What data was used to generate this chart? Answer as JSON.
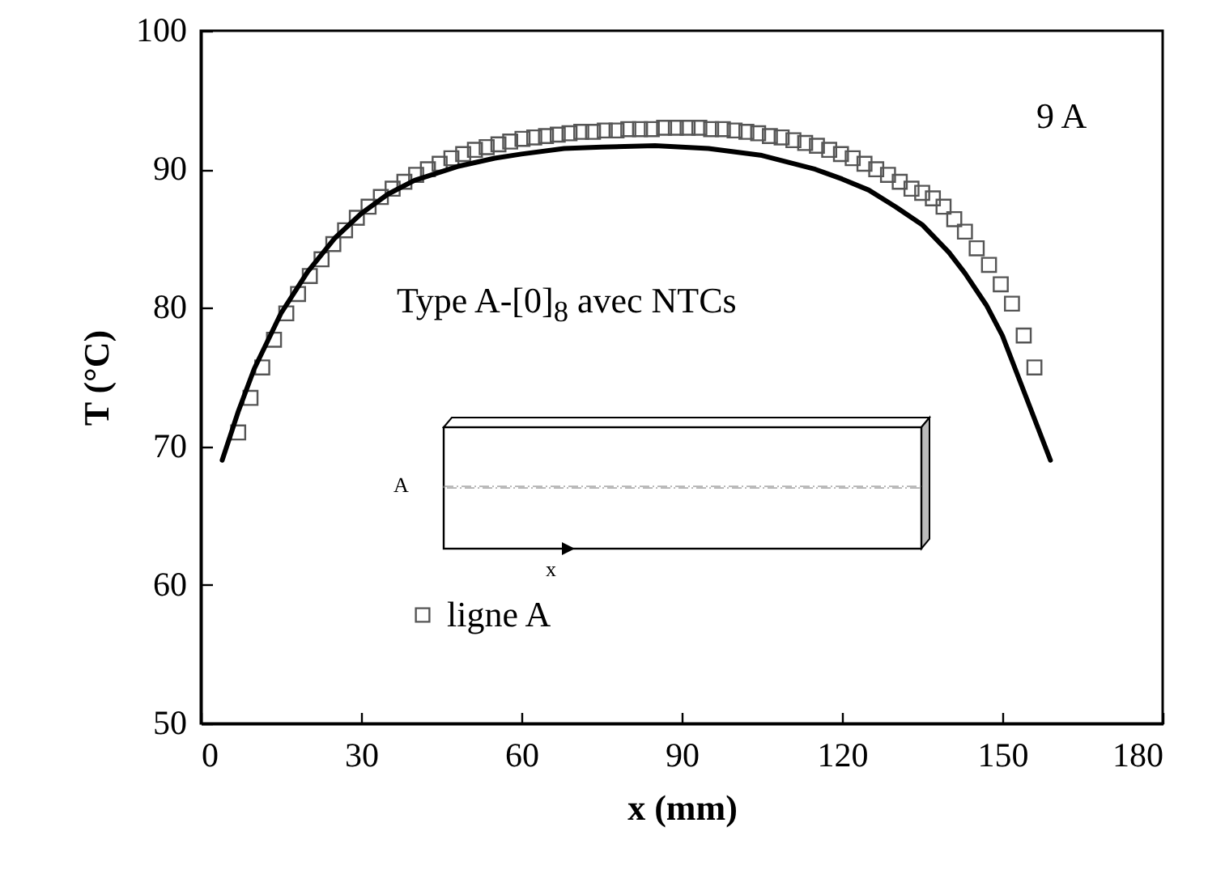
{
  "chart_data": {
    "type": "scatter",
    "xlabel": "x (mm)",
    "ylabel": "T (°C)",
    "xlim": [
      0,
      180
    ],
    "xticks": [
      0,
      30,
      60,
      90,
      120,
      150,
      180
    ],
    "ylim": [
      50,
      100
    ],
    "yticks": [
      50,
      60,
      70,
      80,
      90,
      100
    ],
    "grid": false,
    "legend": "bottom",
    "annotations": [
      "9 A",
      "Type A-[0]$_{8}$ avec NTCs",
      "A",
      "x"
    ],
    "series": [
      {
        "name": "ligne A",
        "marker": "square",
        "color": "#555555",
        "x": [
          7,
          9.3,
          11.5,
          13.7,
          16,
          18.2,
          20.4,
          22.6,
          24.8,
          27,
          29.2,
          31.4,
          33.7,
          35.9,
          38.1,
          40.3,
          42.5,
          44.7,
          46.9,
          49.1,
          51.3,
          53.5,
          55.7,
          57.9,
          60.2,
          62.4,
          64.6,
          66.8,
          69,
          71.2,
          73.4,
          75.6,
          77.8,
          80,
          82.2,
          84.4,
          86.7,
          88.9,
          91.1,
          93.3,
          95.5,
          97.7,
          99.9,
          102.1,
          104.3,
          106.5,
          108.7,
          110.9,
          113.1,
          115.3,
          117.6,
          119.8,
          122,
          124.2,
          126.4,
          128.6,
          130.8,
          133,
          135,
          137,
          139,
          141,
          143,
          145.2,
          147.5,
          149.7,
          151.8,
          154,
          156
        ],
        "values": [
          71,
          73.5,
          75.7,
          77.7,
          79.6,
          81,
          82.3,
          83.5,
          84.6,
          85.6,
          86.5,
          87.3,
          88,
          88.6,
          89.1,
          89.6,
          90,
          90.4,
          90.8,
          91.1,
          91.4,
          91.6,
          91.8,
          92,
          92.2,
          92.3,
          92.4,
          92.5,
          92.6,
          92.7,
          92.7,
          92.8,
          92.8,
          92.9,
          92.9,
          92.9,
          93,
          93,
          93,
          93,
          92.9,
          92.9,
          92.8,
          92.7,
          92.6,
          92.4,
          92.3,
          92.1,
          91.9,
          91.7,
          91.4,
          91.1,
          90.8,
          90.4,
          90,
          89.6,
          89.1,
          88.6,
          88.3,
          87.9,
          87.3,
          86.4,
          85.5,
          84.3,
          83.1,
          81.7,
          80.3,
          78,
          75.7
        ]
      },
      {
        "type": "line",
        "color": "#000000",
        "x": [
          4,
          7,
          10,
          15,
          20,
          25,
          30,
          35,
          40,
          48,
          55,
          60,
          68,
          75,
          85,
          95,
          105,
          115,
          120,
          125,
          130,
          135,
          140,
          143,
          147,
          150,
          153,
          155,
          157,
          159
        ],
        "values": [
          69,
          72.5,
          75.6,
          79.6,
          82.6,
          85,
          86.8,
          88.2,
          89.2,
          90.2,
          90.8,
          91.1,
          91.5,
          91.6,
          91.7,
          91.5,
          91,
          90,
          89.3,
          88.5,
          87.3,
          86,
          84,
          82.5,
          80.2,
          78,
          75,
          73,
          71,
          69
        ]
      }
    ]
  }
}
